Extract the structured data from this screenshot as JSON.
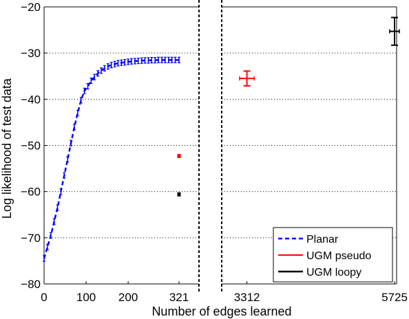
{
  "chart_data": {
    "type": "line",
    "xlabel": "Number of edges learned",
    "ylabel": "Log likelihood of test data",
    "ylim": [
      -80,
      -20
    ],
    "yticks": [
      -80,
      -70,
      -60,
      -50,
      -40,
      -30,
      -20
    ],
    "ytick_labels": [
      "−80",
      "−70",
      "−60",
      "−50",
      "−40",
      "−30",
      "−20"
    ],
    "xticks_left": [
      0,
      100,
      200,
      321
    ],
    "xtick_labels_left": [
      "0",
      "100",
      "200",
      "321"
    ],
    "xticks_right": [
      3312,
      5725
    ],
    "xtick_labels_right": [
      "3312",
      "5725"
    ],
    "grid": "horizontal dotted",
    "legend_position": "bottom-right",
    "series": [
      {
        "name": "Planar",
        "color": "#0000ff",
        "style": "dashed line with error bars",
        "x": [
          0,
          8,
          16,
          24,
          32,
          40,
          48,
          56,
          64,
          72,
          80,
          88,
          96,
          104,
          112,
          120,
          128,
          136,
          144,
          152,
          160,
          168,
          176,
          184,
          192,
          200,
          208,
          216,
          224,
          232,
          240,
          248,
          256,
          264,
          272,
          280,
          288,
          296,
          304,
          312,
          321
        ],
        "y": [
          -74.5,
          -72,
          -69.5,
          -66.5,
          -63.5,
          -60,
          -56.5,
          -53,
          -49.5,
          -46,
          -43,
          -40.2,
          -38.2,
          -37.2,
          -36,
          -35.2,
          -34.4,
          -33.8,
          -33.3,
          -32.9,
          -32.6,
          -32.4,
          -32.2,
          -32.1,
          -32.0,
          -31.9,
          -31.8,
          -31.75,
          -31.7,
          -31.65,
          -31.6,
          -31.6,
          -31.55,
          -31.55,
          -31.5,
          -31.5,
          -31.5,
          -31.5,
          -31.5,
          -31.5,
          -31.5
        ]
      },
      {
        "name": "UGM pseudo",
        "color": "#ff0000",
        "style": "solid line with error bars",
        "x": [
          321,
          3312
        ],
        "y": [
          -52.3,
          -35.5
        ],
        "yerr": [
          0.3,
          1.6
        ],
        "xerr": [
          0,
          120
        ]
      },
      {
        "name": "UGM loopy",
        "color": "#000000",
        "style": "solid line with error bars",
        "x": [
          321,
          5725
        ],
        "y": [
          -60.6,
          -25.3
        ],
        "yerr": [
          0.3,
          3.0
        ],
        "xerr": [
          0,
          80
        ]
      }
    ]
  }
}
